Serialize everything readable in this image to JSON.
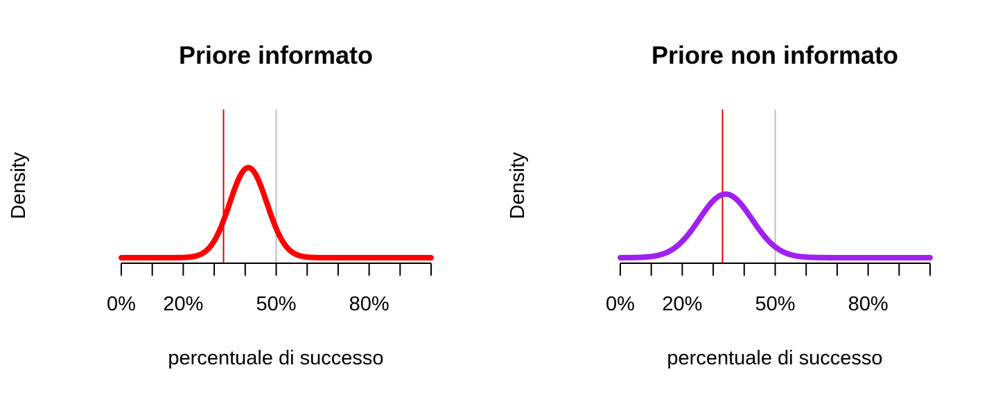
{
  "chart_data": [
    {
      "type": "line",
      "title": "Priore informato",
      "xlabel": "percentuale di successo",
      "ylabel": "Density",
      "xlim": [
        0,
        1
      ],
      "x_ticks": [
        0,
        0.1,
        0.2,
        0.3,
        0.4,
        0.5,
        0.6,
        0.7,
        0.8,
        0.9,
        1.0
      ],
      "x_tick_labels": [
        {
          "value": 0.0,
          "label": "0%"
        },
        {
          "value": 0.2,
          "label": "20%"
        },
        {
          "value": 0.5,
          "label": "50%"
        },
        {
          "value": 0.8,
          "label": "80%"
        }
      ],
      "series": [
        {
          "color": "#ff0000",
          "mean": 0.41,
          "sd": 0.06
        }
      ],
      "vlines": [
        {
          "x": 0.33,
          "color": "#e00000"
        },
        {
          "x": 0.5,
          "color": "#bebebe"
        }
      ],
      "y_axis_shown": false,
      "grid": false
    },
    {
      "type": "line",
      "title": "Priore non informato",
      "xlabel": "percentuale di successo",
      "ylabel": "Density",
      "xlim": [
        0,
        1
      ],
      "x_ticks": [
        0,
        0.1,
        0.2,
        0.3,
        0.4,
        0.5,
        0.6,
        0.7,
        0.8,
        0.9,
        1.0
      ],
      "x_tick_labels": [
        {
          "value": 0.0,
          "label": "0%"
        },
        {
          "value": 0.2,
          "label": "20%"
        },
        {
          "value": 0.5,
          "label": "50%"
        },
        {
          "value": 0.8,
          "label": "80%"
        }
      ],
      "series": [
        {
          "color": "#a020f0",
          "mean": 0.34,
          "sd": 0.085
        }
      ],
      "vlines": [
        {
          "x": 0.33,
          "color": "#e00000"
        },
        {
          "x": 0.5,
          "color": "#bebebe"
        }
      ],
      "y_axis_shown": false,
      "grid": false
    }
  ]
}
